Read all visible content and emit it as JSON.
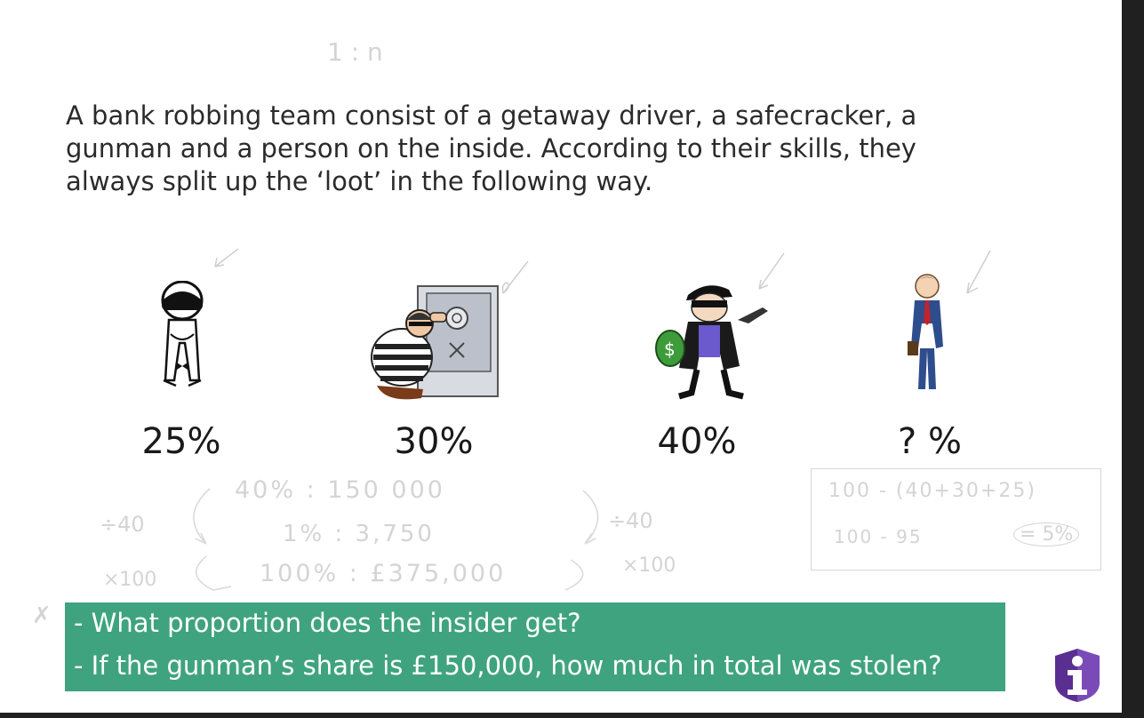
{
  "question": {
    "text": "A bank robbing team consist of a getaway driver, a safecracker, a gunman and a person on the inside.  According to their skills, they always split up the ‘loot’ in the following way."
  },
  "roles": [
    {
      "name": "getaway-driver",
      "percent": "25%"
    },
    {
      "name": "safecracker",
      "percent": "30%"
    },
    {
      "name": "gunman",
      "percent": "40%"
    },
    {
      "name": "insider",
      "percent": "? %"
    }
  ],
  "annotations": {
    "top_note": "1 : n",
    "row1": "40%  :  150 000",
    "row2": "1%  :  3,750",
    "row3": "100% : £375,000",
    "left_div": "÷40",
    "left_mul": "×100",
    "right_div": "÷40",
    "right_mul": "×100",
    "box_line1": "100 - (40+30+25)",
    "box_line2": "100 - 95",
    "box_answer": "= 5%",
    "left_mark": "✗"
  },
  "tasks": {
    "q1": "- What proportion does the insider get?",
    "q2": "- If the gunman’s share is £150,000, how much in total was stolen?"
  },
  "colors": {
    "accent": "#3fa380",
    "logo": "#6a3fa0"
  }
}
